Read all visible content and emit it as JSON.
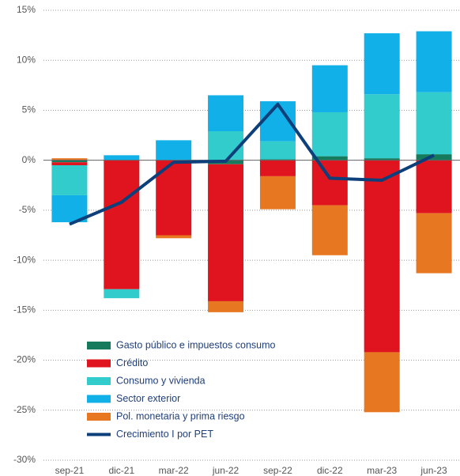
{
  "chart_data": {
    "type": "bar",
    "categories": [
      "sep-21",
      "dic-21",
      "mar-22",
      "jun-22",
      "sep-22",
      "dic-22",
      "mar-23",
      "jun-23"
    ],
    "series": [
      {
        "name": "Gasto público e impuestos consumo",
        "color": "#167a5c",
        "values": [
          -0.2,
          0,
          0,
          -0.4,
          0.1,
          0.4,
          0.2,
          0.6
        ]
      },
      {
        "name": "Crédito",
        "color": "#e0141e",
        "values": [
          -0.3,
          -12.9,
          -7.5,
          -13.7,
          -1.6,
          -4.5,
          -19.2,
          -5.3
        ]
      },
      {
        "name": "Consumo y vivienda",
        "color": "#33cccc",
        "values": [
          -3.0,
          -0.9,
          0,
          2.9,
          1.8,
          4.4,
          6.4,
          6.2
        ]
      },
      {
        "name": "Sector exterior",
        "color": "#11b0e8",
        "values": [
          -2.7,
          0.5,
          2.0,
          3.6,
          4.0,
          4.7,
          6.1,
          6.1
        ]
      },
      {
        "name": "Pol. monetaria y prima riesgo",
        "color": "#e87722",
        "values": [
          0.2,
          0,
          -0.3,
          -1.1,
          -3.3,
          -5.0,
          -6.0,
          -6.0
        ]
      },
      {
        "name": "Crecimiento I por PET",
        "color": "#0d3f7a",
        "type": "line",
        "values": [
          -6.4,
          -4.2,
          -0.2,
          -0.1,
          5.6,
          -1.8,
          -2.0,
          0.5
        ]
      }
    ],
    "ylim": [
      -30,
      15
    ],
    "yticks": [
      {
        "value": -30,
        "label": "-30%"
      },
      {
        "value": -25,
        "label": "-25%"
      },
      {
        "value": -20,
        "label": "-20%"
      },
      {
        "value": -15,
        "label": "-15%"
      },
      {
        "value": -10,
        "label": "-10%"
      },
      {
        "value": -5,
        "label": "-5%"
      },
      {
        "value": 0,
        "label": "0%"
      },
      {
        "value": 5,
        "label": "5%"
      },
      {
        "value": 10,
        "label": "10%"
      },
      {
        "value": 15,
        "label": "15%"
      }
    ],
    "grid": true
  }
}
